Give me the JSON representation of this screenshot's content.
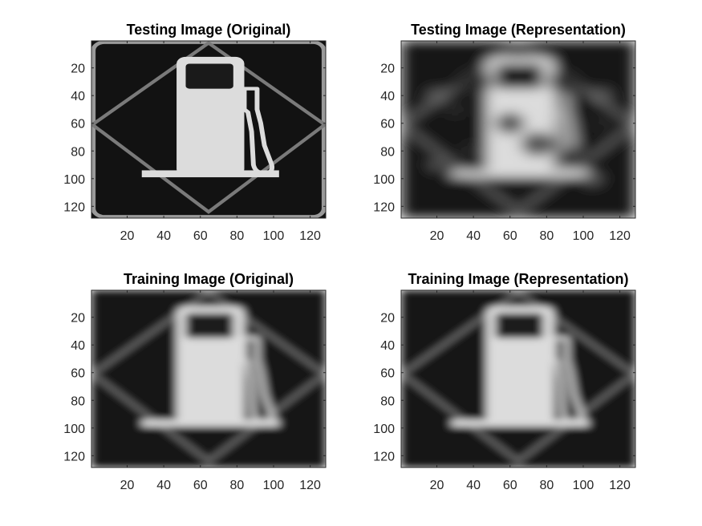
{
  "colors": {
    "background": "#ffffff",
    "axis": "#262626",
    "image_dark": "#121212",
    "image_light": "#dcdcdc"
  },
  "chart_data": [
    {
      "type": "heatmap",
      "colormap": "gray",
      "title": "Testing Image (Original)",
      "xlabel": "",
      "ylabel": "",
      "xlim": [
        0.5,
        128.5
      ],
      "ylim": [
        0.5,
        128.5
      ],
      "y_direction": "reverse",
      "xticks": [
        20,
        40,
        60,
        80,
        100,
        120
      ],
      "yticks": [
        20,
        40,
        60,
        80,
        100,
        120
      ],
      "content": "fuel-pump-sign",
      "blur": 0
    },
    {
      "type": "heatmap",
      "colormap": "gray",
      "title": "Testing Image (Representation)",
      "xlabel": "",
      "ylabel": "",
      "xlim": [
        0.5,
        128.5
      ],
      "ylim": [
        0.5,
        128.5
      ],
      "y_direction": "reverse",
      "xticks": [
        20,
        40,
        60,
        80,
        100,
        120
      ],
      "yticks": [
        20,
        40,
        60,
        80,
        100,
        120
      ],
      "content": "fuel-pump-sign-noisy-reconstruction",
      "blur": 4
    },
    {
      "type": "heatmap",
      "colormap": "gray",
      "title": "Training Image (Original)",
      "xlabel": "",
      "ylabel": "",
      "xlim": [
        0.5,
        128.5
      ],
      "ylim": [
        0.5,
        128.5
      ],
      "y_direction": "reverse",
      "xticks": [
        20,
        40,
        60,
        80,
        100,
        120
      ],
      "yticks": [
        20,
        40,
        60,
        80,
        100,
        120
      ],
      "content": "fuel-pump-sign-blurred",
      "blur": 2.5
    },
    {
      "type": "heatmap",
      "colormap": "gray",
      "title": "Training Image (Representation)",
      "xlabel": "",
      "ylabel": "",
      "xlim": [
        0.5,
        128.5
      ],
      "ylim": [
        0.5,
        128.5
      ],
      "y_direction": "reverse",
      "xticks": [
        20,
        40,
        60,
        80,
        100,
        120
      ],
      "yticks": [
        20,
        40,
        60,
        80,
        100,
        120
      ],
      "content": "fuel-pump-sign-blurred",
      "blur": 2.5
    }
  ]
}
